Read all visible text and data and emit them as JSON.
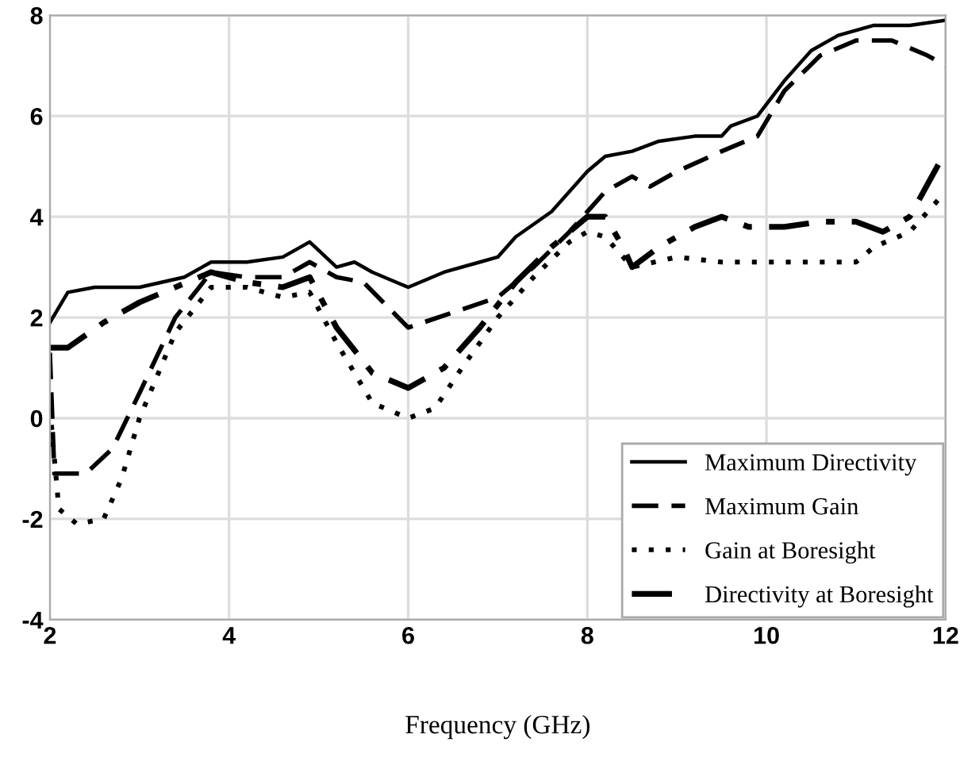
{
  "chart_data": {
    "type": "line",
    "xlabel": "Frequency (GHz)",
    "xlim": [
      2,
      12
    ],
    "xticks": [
      2,
      4,
      6,
      8,
      10,
      12
    ],
    "ylim": [
      -4,
      8
    ],
    "yticks": [
      -4,
      -2,
      0,
      2,
      4,
      6,
      8
    ],
    "grid": true,
    "legend": "bottom right",
    "series": [
      {
        "name": "Maximum Directivity",
        "color": "#000000",
        "line_style": "solid",
        "x": [
          2,
          2.2,
          2.5,
          3,
          3.5,
          3.8,
          4.2,
          4.6,
          4.9,
          5.2,
          5.4,
          5.6,
          6,
          6.4,
          6.8,
          7,
          7.2,
          7.6,
          8,
          8.2,
          8.5,
          8.8,
          9.2,
          9.5,
          9.6,
          9.9,
          10.2,
          10.5,
          10.8,
          11.2,
          11.6,
          12
        ],
        "values": [
          1.9,
          2.5,
          2.6,
          2.6,
          2.8,
          3.1,
          3.1,
          3.2,
          3.5,
          3.0,
          3.1,
          2.9,
          2.6,
          2.9,
          3.1,
          3.2,
          3.6,
          4.1,
          4.9,
          5.2,
          5.3,
          5.5,
          5.6,
          5.6,
          5.8,
          6.0,
          6.7,
          7.3,
          7.6,
          7.8,
          7.8,
          7.9
        ]
      },
      {
        "name": "Maximum Gain",
        "color": "#000000",
        "line_style": "dashed",
        "x": [
          2,
          2.05,
          2.4,
          2.7,
          3,
          3.4,
          3.8,
          4.2,
          4.6,
          4.9,
          5.2,
          5.5,
          6,
          6.5,
          7,
          7.4,
          7.8,
          8.2,
          8.5,
          8.7,
          9,
          9.5,
          9.9,
          10.2,
          10.6,
          11,
          11.4,
          11.8,
          12
        ],
        "values": [
          1.3,
          -1.1,
          -1.1,
          -0.6,
          0.5,
          2.0,
          2.9,
          2.8,
          2.8,
          3.1,
          2.8,
          2.7,
          1.8,
          2.1,
          2.4,
          3.0,
          3.7,
          4.5,
          4.8,
          4.6,
          4.9,
          5.3,
          5.6,
          6.5,
          7.2,
          7.5,
          7.5,
          7.2,
          7.0
        ]
      },
      {
        "name": "Gain at Boresight",
        "color": "#000000",
        "line_style": "dotted",
        "x": [
          2,
          2.1,
          2.3,
          2.6,
          2.8,
          3,
          3.4,
          3.8,
          4.2,
          4.6,
          4.9,
          5.2,
          5.6,
          6,
          6.3,
          6.6,
          7,
          7.4,
          7.8,
          8,
          8.2,
          8.5,
          9,
          9.5,
          10,
          10.5,
          11,
          11.2,
          11.6,
          12
        ],
        "values": [
          0.2,
          -1.8,
          -2.1,
          -2.0,
          -1.2,
          0.0,
          1.7,
          2.6,
          2.6,
          2.4,
          2.5,
          1.5,
          0.3,
          0.0,
          0.2,
          1.0,
          2.0,
          2.8,
          3.5,
          3.7,
          3.6,
          3.0,
          3.2,
          3.1,
          3.1,
          3.1,
          3.1,
          3.4,
          3.7,
          4.5
        ]
      },
      {
        "name": "Directivity at Boresight",
        "color": "#000000",
        "line_style": "dashdot",
        "x": [
          2,
          2.2,
          2.6,
          3,
          3.4,
          3.8,
          4.2,
          4.6,
          4.9,
          5.2,
          5.6,
          6,
          6.4,
          6.8,
          7.2,
          7.6,
          8,
          8.2,
          8.4,
          8.5,
          8.8,
          9.2,
          9.5,
          9.8,
          10.2,
          10.6,
          11,
          11.3,
          11.6,
          12
        ],
        "values": [
          1.4,
          1.4,
          1.9,
          2.3,
          2.6,
          2.9,
          2.7,
          2.6,
          2.8,
          1.8,
          0.9,
          0.6,
          1.0,
          1.8,
          2.7,
          3.4,
          4.0,
          4.0,
          3.4,
          3.0,
          3.4,
          3.8,
          4.0,
          3.8,
          3.8,
          3.9,
          3.9,
          3.7,
          4.0,
          5.3
        ]
      }
    ]
  }
}
